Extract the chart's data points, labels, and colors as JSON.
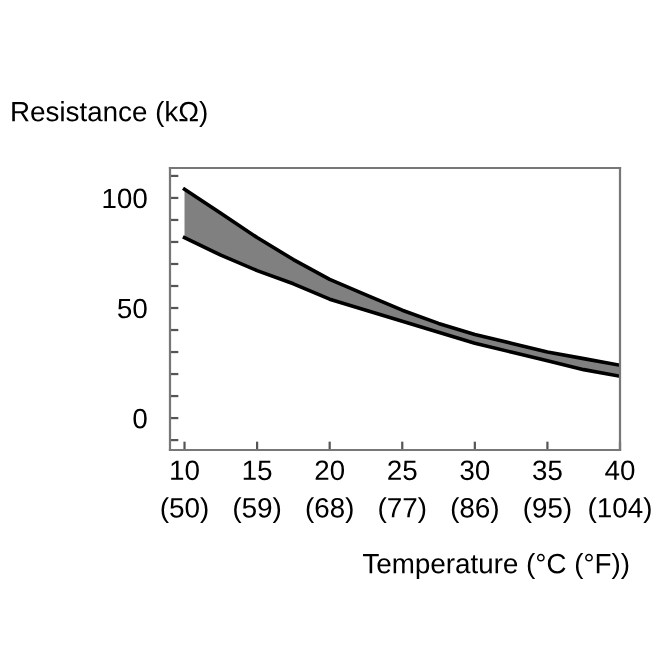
{
  "chart_data": {
    "type": "line",
    "xlabel": "Temperature (°C (°F))",
    "ylabel": "Resistance (kΩ)",
    "x": [
      10,
      12.5,
      15,
      17.5,
      20,
      22.5,
      25,
      27.5,
      30,
      32.5,
      35,
      37.5,
      40
    ],
    "series": [
      {
        "color": "#000000",
        "values": [
          104,
          93,
          82,
          72,
          63,
          56,
          49,
          43,
          38,
          34,
          30,
          27,
          24
        ],
        "lower": [
          82,
          74,
          67,
          61,
          54,
          49,
          44,
          39,
          34,
          30,
          26,
          22,
          19
        ],
        "upper": [
          104,
          93,
          82,
          72,
          63,
          56,
          49,
          43,
          38,
          34,
          30,
          27,
          24
        ]
      },
      {
        "color": "#000000",
        "values": [
          82,
          74,
          67,
          61,
          54,
          49,
          44,
          39,
          34,
          30,
          26,
          22,
          19
        ]
      }
    ],
    "xlim": [
      9,
      40
    ],
    "ylim": [
      -14.5,
      113.6
    ],
    "xticks": [
      10,
      15,
      20,
      25,
      30,
      35,
      40
    ],
    "x2lim": [
      48.2,
      104
    ],
    "x2ticks": [
      {
        "value": 50,
        "label": "(50)"
      },
      {
        "value": 59,
        "label": "(59)"
      },
      {
        "value": 68,
        "label": "(68)"
      },
      {
        "value": 77,
        "label": "(77)"
      },
      {
        "value": 86,
        "label": "(86)"
      },
      {
        "value": 95,
        "label": "(95)"
      },
      {
        "value": 104,
        "label": "(104)"
      }
    ],
    "yticks": [
      {
        "value": -10,
        "label": null
      },
      0,
      {
        "value": 10,
        "label": null
      },
      {
        "value": 20,
        "label": null
      },
      {
        "value": 30,
        "label": null
      },
      {
        "value": 40,
        "label": null
      },
      50,
      {
        "value": 60,
        "label": null
      },
      {
        "value": 70,
        "label": null
      },
      {
        "value": 80,
        "label": null
      },
      {
        "value": 90,
        "label": null
      },
      100,
      {
        "value": 110,
        "label": null
      }
    ],
    "grid": false,
    "legend": false
  }
}
